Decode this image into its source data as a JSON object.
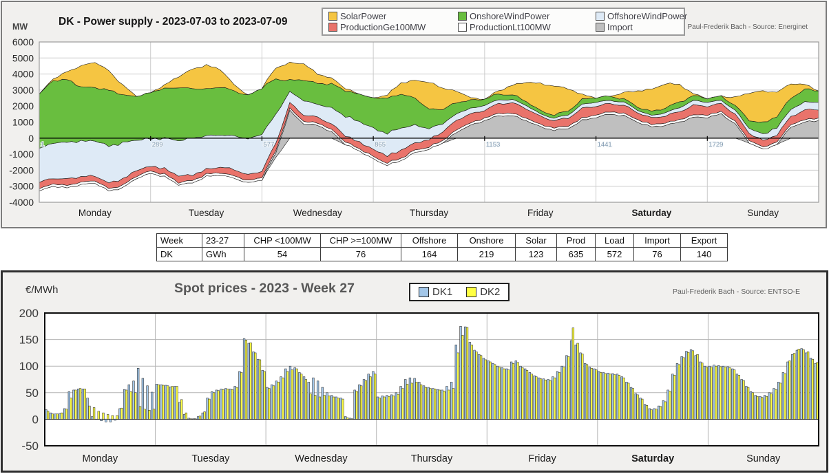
{
  "top_chart": {
    "title": "DK - Power supply - 2023-07-03 to 2023-07-09",
    "unit_label": "MW",
    "attribution": "Paul-Frederik Bach - Source: Energinet",
    "legend": [
      {
        "label": "SolarPower",
        "color": "#F5C542"
      },
      {
        "label": "OnshoreWindPower",
        "color": "#69BE3F"
      },
      {
        "label": "OffshoreWindPower",
        "color": "#DEEAF6"
      },
      {
        "label": "ProductionGe100MW",
        "color": "#E9736B"
      },
      {
        "label": "ProductionLt100MW",
        "color": "#FFFFFF"
      },
      {
        "label": "Import",
        "color": "#BFBFBF"
      }
    ]
  },
  "summary_table": {
    "headers": [
      "Week",
      "23-27",
      "CHP <100MW",
      "CHP >=100MW",
      "Offshore",
      "Onshore",
      "Solar",
      "Prod",
      "Load",
      "Import",
      "Export"
    ],
    "rows": [
      [
        "DK",
        "GWh",
        "54",
        "76",
        "164",
        "219",
        "123",
        "635",
        "572",
        "76",
        "140"
      ]
    ]
  },
  "bottom_chart": {
    "title": "Spot prices - 2023 - Week 27",
    "unit_label": "€/MWh",
    "attribution": "Paul-Frederik Bach - Source: ENTSO-E",
    "legend": [
      {
        "label": "DK1",
        "color": "#A3C7E9"
      },
      {
        "label": "DK2",
        "color": "#FFFF42"
      }
    ]
  },
  "chart_data": [
    {
      "type": "area",
      "title": "DK - Power supply - 2023-07-03 to 2023-07-09",
      "ylabel": "MW",
      "ylim": [
        -4000,
        6000
      ],
      "y_ticks": [
        6000,
        5000,
        4000,
        3000,
        2000,
        1000,
        0,
        -1000,
        -2000,
        -3000,
        -4000
      ],
      "grid": true,
      "legend_position": "top",
      "day_labels": [
        "Monday",
        "Tuesday",
        "Wednesday",
        "Thursday",
        "Friday",
        "Saturday",
        "Sunday"
      ],
      "interval_labels": [
        "1",
        "289",
        "577",
        "865",
        "1153",
        "1441",
        "1729"
      ],
      "x_total_hours": 168,
      "x_hours_step": 3,
      "stacking_note": "series are MW thicknesses stacked bottom-to-top starting at bottom_line; bottom_line<0 = export",
      "bottom_line": [
        -3300,
        -3000,
        -3100,
        -2900,
        -2800,
        -3300,
        -3100,
        -2500,
        -2200,
        -2400,
        -2900,
        -2800,
        -2400,
        -2300,
        -2500,
        -2800,
        -2600,
        -1200,
        0,
        0,
        0,
        0,
        -400,
        -800,
        -1300,
        -1700,
        -1400,
        -900,
        -700,
        -300,
        0,
        0,
        0,
        0,
        0,
        0,
        0,
        0,
        0,
        0,
        0,
        0,
        0,
        0,
        0,
        0,
        0,
        0,
        0,
        0,
        0,
        -300,
        -700,
        -400,
        0,
        0,
        0
      ],
      "series": [
        {
          "name": "Import",
          "color": "#BFBFBF",
          "values": [
            0,
            0,
            0,
            0,
            0,
            0,
            0,
            0,
            0,
            0,
            0,
            0,
            0,
            0,
            0,
            0,
            0,
            300,
            1700,
            900,
            800,
            400,
            0,
            0,
            0,
            0,
            0,
            0,
            0,
            0,
            400,
            800,
            1100,
            1400,
            1400,
            1100,
            700,
            500,
            600,
            1100,
            1300,
            1500,
            1400,
            1000,
            700,
            800,
            1000,
            1300,
            1300,
            1500,
            900,
            0,
            0,
            0,
            700,
            1000,
            1100
          ]
        },
        {
          "name": "ProductionLt100MW",
          "color": "#FFFFFF",
          "values": [
            150,
            150,
            150,
            150,
            150,
            150,
            150,
            150,
            150,
            150,
            150,
            150,
            150,
            150,
            150,
            150,
            150,
            150,
            150,
            150,
            150,
            150,
            150,
            150,
            150,
            150,
            150,
            150,
            150,
            150,
            150,
            150,
            150,
            150,
            150,
            150,
            150,
            150,
            150,
            150,
            150,
            150,
            150,
            150,
            150,
            150,
            150,
            150,
            150,
            150,
            150,
            150,
            150,
            150,
            150,
            150,
            150
          ]
        },
        {
          "name": "ProductionGe100MW",
          "color": "#E9736B",
          "values": [
            400,
            350,
            400,
            350,
            300,
            350,
            400,
            350,
            300,
            350,
            400,
            350,
            300,
            350,
            400,
            350,
            400,
            450,
            350,
            400,
            350,
            350,
            400,
            400,
            450,
            450,
            500,
            450,
            450,
            550,
            600,
            550,
            500,
            600,
            650,
            600,
            500,
            450,
            500,
            600,
            550,
            500,
            500,
            450,
            400,
            450,
            500,
            600,
            550,
            500,
            450,
            450,
            400,
            450,
            500,
            600,
            550
          ]
        },
        {
          "name": "OffshoreWindPower",
          "color": "#DEEAF6",
          "values": [
            2100,
            2200,
            2300,
            2200,
            2200,
            2300,
            2250,
            1900,
            1700,
            1900,
            2200,
            2300,
            2100,
            2000,
            2100,
            2250,
            2300,
            1800,
            700,
            900,
            800,
            1000,
            1200,
            1300,
            1300,
            1400,
            1400,
            1100,
            700,
            500,
            400,
            350,
            300,
            250,
            200,
            200,
            150,
            150,
            200,
            250,
            250,
            200,
            200,
            150,
            150,
            200,
            250,
            300,
            250,
            200,
            250,
            300,
            400,
            450,
            450,
            500,
            450
          ]
        },
        {
          "name": "OnshoreWindPower",
          "color": "#69BE3F",
          "values": [
            3400,
            3900,
            3900,
            3400,
            3300,
            3500,
            3000,
            2700,
            2900,
            3100,
            3300,
            3100,
            2900,
            3000,
            2800,
            2700,
            2900,
            2200,
            700,
            1300,
            1300,
            1500,
            1600,
            1700,
            1900,
            2200,
            2100,
            1700,
            1200,
            900,
            700,
            500,
            400,
            350,
            300,
            250,
            200,
            200,
            250,
            300,
            300,
            250,
            200,
            200,
            250,
            300,
            350,
            300,
            250,
            250,
            300,
            500,
            700,
            700,
            700,
            800,
            700
          ]
        },
        {
          "name": "SolarPower",
          "color": "#F5C542",
          "values": [
            0,
            100,
            500,
            1300,
            1600,
            1200,
            600,
            0,
            0,
            200,
            700,
            1200,
            1500,
            1100,
            400,
            0,
            0,
            700,
            1100,
            1000,
            600,
            350,
            150,
            0,
            0,
            200,
            700,
            1100,
            1700,
            1300,
            700,
            150,
            0,
            200,
            600,
            1200,
            1700,
            1800,
            1400,
            300,
            0,
            0,
            400,
            1000,
            1400,
            1500,
            1100,
            100,
            0,
            0,
            500,
            1700,
            2000,
            1500,
            900,
            300,
            0
          ]
        }
      ]
    },
    {
      "type": "bar",
      "title": "Spot prices - 2023 - Week 27",
      "ylabel": "€/MWh",
      "ylim": [
        -50,
        200
      ],
      "y_ticks": [
        200,
        150,
        100,
        50,
        0,
        -50
      ],
      "grid": true,
      "legend_position": "top",
      "day_labels": [
        "Monday",
        "Tuesday",
        "Wednesday",
        "Thursday",
        "Friday",
        "Saturday",
        "Sunday"
      ],
      "x_hours": 168,
      "series": [
        {
          "name": "DK1",
          "color": "#A3C7E9",
          "values": [
            18,
            12,
            10,
            11,
            20,
            52,
            55,
            57,
            57,
            40,
            5,
            0,
            -3,
            -5,
            -5,
            -2,
            20,
            56,
            65,
            72,
            96,
            77,
            63,
            51,
            66,
            65,
            64,
            61,
            62,
            32,
            9,
            2,
            1,
            5,
            12,
            40,
            52,
            55,
            57,
            58,
            57,
            62,
            90,
            152,
            143,
            127,
            113,
            92,
            60,
            65,
            72,
            80,
            95,
            100,
            97,
            88,
            80,
            70,
            78,
            72,
            60,
            50,
            45,
            42,
            40,
            5,
            2,
            55,
            65,
            75,
            85,
            90,
            42,
            44,
            45,
            46,
            50,
            62,
            75,
            78,
            77,
            70,
            63,
            60,
            58,
            56,
            55,
            62,
            70,
            140,
            175,
            174,
            145,
            130,
            122,
            115,
            110,
            105,
            100,
            97,
            95,
            108,
            110,
            100,
            95,
            88,
            82,
            78,
            76,
            75,
            80,
            90,
            100,
            120,
            148,
            140,
            125,
            105,
            98,
            95,
            90,
            88,
            87,
            86,
            85,
            80,
            70,
            60,
            48,
            40,
            28,
            20,
            20,
            25,
            35,
            55,
            85,
            105,
            118,
            128,
            131,
            120,
            108,
            100,
            100,
            102,
            101,
            100,
            99,
            95,
            85,
            75,
            62,
            52,
            45,
            43,
            45,
            50,
            58,
            70,
            88,
            108,
            122,
            130,
            133,
            125,
            115,
            105
          ]
        },
        {
          "name": "DK2",
          "color": "#FFFF42",
          "values": [
            15,
            10,
            10,
            12,
            19,
            40,
            55,
            58,
            57,
            25,
            22,
            15,
            12,
            9,
            7,
            7,
            21,
            55,
            52,
            50,
            24,
            19,
            17,
            19,
            65,
            64,
            63,
            62,
            62,
            37,
            12,
            1,
            1,
            6,
            14,
            38,
            50,
            54,
            56,
            57,
            56,
            60,
            88,
            149,
            144,
            125,
            112,
            90,
            58,
            63,
            70,
            78,
            90,
            93,
            95,
            85,
            75,
            48,
            45,
            42,
            45,
            44,
            42,
            40,
            38,
            3,
            1,
            53,
            63,
            73,
            80,
            85,
            40,
            42,
            43,
            44,
            47,
            58,
            66,
            68,
            70,
            65,
            60,
            58,
            57,
            55,
            53,
            55,
            58,
            125,
            158,
            173,
            140,
            127,
            120,
            112,
            108,
            103,
            98,
            95,
            93,
            105,
            107,
            97,
            92,
            85,
            80,
            76,
            74,
            73,
            78,
            88,
            98,
            118,
            172,
            143,
            123,
            103,
            96,
            93,
            88,
            86,
            85,
            84,
            83,
            78,
            68,
            58,
            46,
            38,
            26,
            18,
            19,
            24,
            33,
            53,
            83,
            103,
            116,
            126,
            129,
            122,
            106,
            98,
            98,
            100,
            99,
            98,
            97,
            93,
            83,
            73,
            60,
            50,
            43,
            41,
            43,
            48,
            56,
            68,
            86,
            110,
            124,
            132,
            131,
            127,
            113,
            107
          ]
        }
      ]
    }
  ]
}
